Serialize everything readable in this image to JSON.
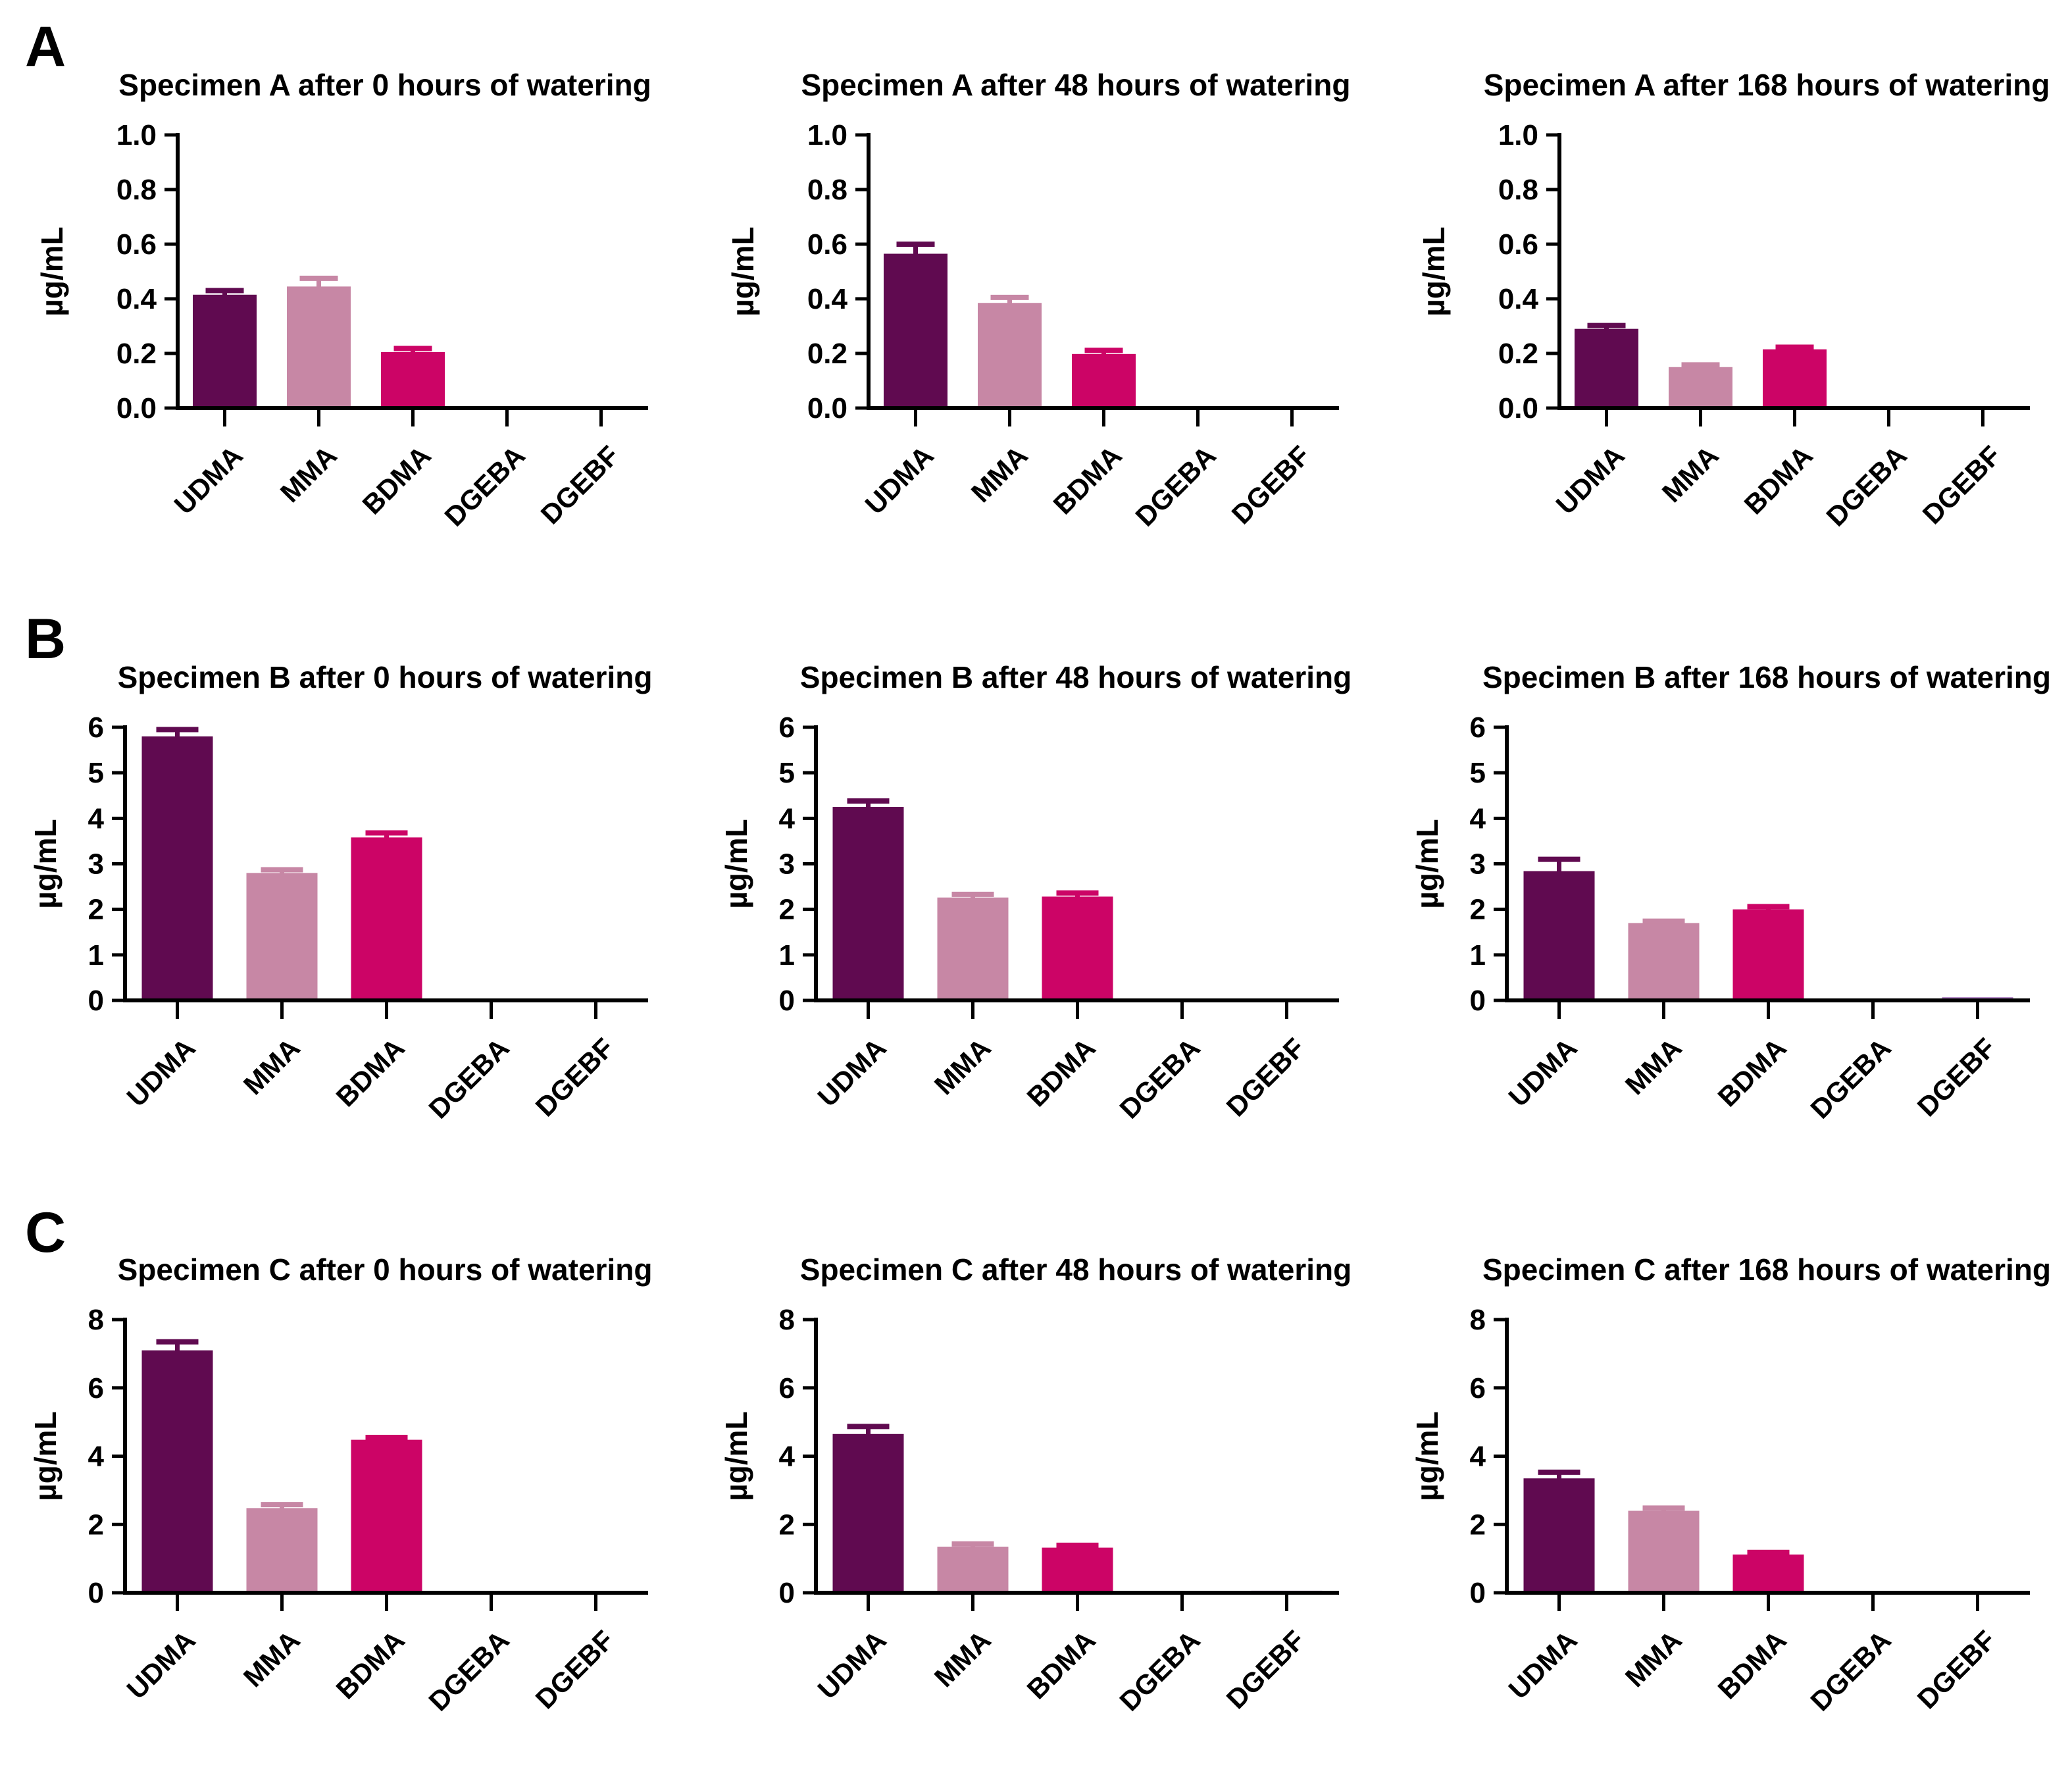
{
  "panels": [
    {
      "letter": "A"
    },
    {
      "letter": "B"
    },
    {
      "letter": "C"
    }
  ],
  "categories": [
    "UDMA",
    "MMA",
    "BDMA",
    "DGEBA",
    "DGEBF"
  ],
  "bar_colors": [
    "#600a50",
    "#c787a5",
    "#cc0466",
    "#ab7cc0",
    "#ab7cc0"
  ],
  "axis_color": "#000000",
  "chart_data": [
    {
      "type": "bar",
      "panel": "A",
      "title": "Specimen A after 0 hours of watering",
      "ylabel": "µg/mL",
      "ylim": [
        0,
        1.0
      ],
      "ytick_values": [
        0,
        0.2,
        0.4,
        0.6,
        0.8,
        1.0
      ],
      "ytick_labels": [
        "0.0",
        "0.2",
        "0.4",
        "0.6",
        "0.8",
        "1.0"
      ],
      "categories": [
        "UDMA",
        "MMA",
        "BDMA",
        "DGEBA",
        "DGEBF"
      ],
      "values": [
        0.415,
        0.445,
        0.205,
        0,
        0
      ],
      "errors": [
        0.015,
        0.03,
        0.013,
        0,
        0
      ],
      "grid": false,
      "legend": "none"
    },
    {
      "type": "bar",
      "panel": "A",
      "title": "Specimen A after 48 hours of watering",
      "ylabel": "µg/mL",
      "ylim": [
        0,
        1.0
      ],
      "ytick_values": [
        0,
        0.2,
        0.4,
        0.6,
        0.8,
        1.0
      ],
      "ytick_labels": [
        "0.0",
        "0.2",
        "0.4",
        "0.6",
        "0.8",
        "1.0"
      ],
      "categories": [
        "UDMA",
        "MMA",
        "BDMA",
        "DGEBA",
        "DGEBF"
      ],
      "values": [
        0.565,
        0.385,
        0.198,
        0,
        0
      ],
      "errors": [
        0.035,
        0.02,
        0.013,
        0,
        0
      ],
      "grid": false,
      "legend": "none"
    },
    {
      "type": "bar",
      "panel": "A",
      "title": "Specimen A after 168 hours of watering",
      "ylabel": "µg/mL",
      "ylim": [
        0,
        1.0
      ],
      "ytick_values": [
        0,
        0.2,
        0.4,
        0.6,
        0.8,
        1.0
      ],
      "ytick_labels": [
        "0.0",
        "0.2",
        "0.4",
        "0.6",
        "0.8",
        "1.0"
      ],
      "categories": [
        "UDMA",
        "MMA",
        "BDMA",
        "DGEBA",
        "DGEBF"
      ],
      "values": [
        0.29,
        0.15,
        0.215,
        0,
        0
      ],
      "errors": [
        0.012,
        0.008,
        0.008,
        0,
        0
      ],
      "grid": false,
      "legend": "none"
    },
    {
      "type": "bar",
      "panel": "B",
      "title": "Specimen B after 0 hours of watering",
      "ylabel": "µg/mL",
      "ylim": [
        0,
        6
      ],
      "ytick_values": [
        0,
        1,
        2,
        3,
        4,
        5,
        6
      ],
      "ytick_labels": [
        "0",
        "1",
        "2",
        "3",
        "4",
        "5",
        "6"
      ],
      "categories": [
        "UDMA",
        "MMA",
        "BDMA",
        "DGEBA",
        "DGEBF"
      ],
      "values": [
        5.8,
        2.8,
        3.58,
        0,
        0
      ],
      "errors": [
        0.15,
        0.07,
        0.1,
        0,
        0
      ],
      "grid": false,
      "legend": "none"
    },
    {
      "type": "bar",
      "panel": "B",
      "title": "Specimen B after 48 hours of watering",
      "ylabel": "µg/mL",
      "ylim": [
        0,
        6
      ],
      "ytick_values": [
        0,
        1,
        2,
        3,
        4,
        5,
        6
      ],
      "ytick_labels": [
        "0",
        "1",
        "2",
        "3",
        "4",
        "5",
        "6"
      ],
      "categories": [
        "UDMA",
        "MMA",
        "BDMA",
        "DGEBA",
        "DGEBF"
      ],
      "values": [
        4.25,
        2.26,
        2.28,
        0,
        0
      ],
      "errors": [
        0.13,
        0.07,
        0.08,
        0,
        0
      ],
      "grid": false,
      "legend": "none"
    },
    {
      "type": "bar",
      "panel": "B",
      "title": "Specimen B after 168 hours of watering",
      "ylabel": "µg/mL",
      "ylim": [
        0,
        6
      ],
      "ytick_values": [
        0,
        1,
        2,
        3,
        4,
        5,
        6
      ],
      "ytick_labels": [
        "0",
        "1",
        "2",
        "3",
        "4",
        "5",
        "6"
      ],
      "categories": [
        "UDMA",
        "MMA",
        "BDMA",
        "DGEBA",
        "DGEBF"
      ],
      "values": [
        2.84,
        1.7,
        2.0,
        0,
        0.07
      ],
      "errors": [
        0.26,
        0.04,
        0.06,
        0,
        0
      ],
      "grid": false,
      "legend": "none"
    },
    {
      "type": "bar",
      "panel": "C",
      "title": "Specimen C after 0 hours of watering",
      "ylabel": "µg/mL",
      "ylim": [
        0,
        8
      ],
      "ytick_values": [
        0,
        2,
        4,
        6,
        8
      ],
      "ytick_labels": [
        "0",
        "2",
        "4",
        "6",
        "8"
      ],
      "categories": [
        "UDMA",
        "MMA",
        "BDMA",
        "DGEBA",
        "DGEBF"
      ],
      "values": [
        7.1,
        2.48,
        4.48,
        0,
        0
      ],
      "errors": [
        0.25,
        0.1,
        0.07,
        0,
        0
      ],
      "grid": false,
      "legend": "none"
    },
    {
      "type": "bar",
      "panel": "C",
      "title": "Specimen C after 48 hours of watering",
      "ylabel": "µg/mL",
      "ylim": [
        0,
        8
      ],
      "ytick_values": [
        0,
        2,
        4,
        6,
        8
      ],
      "ytick_labels": [
        "0",
        "2",
        "4",
        "6",
        "8"
      ],
      "categories": [
        "UDMA",
        "MMA",
        "BDMA",
        "DGEBA",
        "DGEBF"
      ],
      "values": [
        4.65,
        1.35,
        1.32,
        0,
        0.06
      ],
      "errors": [
        0.22,
        0.08,
        0.07,
        0,
        0
      ],
      "grid": false,
      "legend": "none"
    },
    {
      "type": "bar",
      "panel": "C",
      "title": "Specimen C after 168 hours of watering",
      "ylabel": "µg/mL",
      "ylim": [
        0,
        8
      ],
      "ytick_values": [
        0,
        2,
        4,
        6,
        8
      ],
      "ytick_labels": [
        "0",
        "2",
        "4",
        "6",
        "8"
      ],
      "categories": [
        "UDMA",
        "MMA",
        "BDMA",
        "DGEBA",
        "DGEBF"
      ],
      "values": [
        3.35,
        2.4,
        1.12,
        0,
        0
      ],
      "errors": [
        0.18,
        0.08,
        0.06,
        0,
        0
      ],
      "grid": false,
      "legend": "none"
    }
  ]
}
